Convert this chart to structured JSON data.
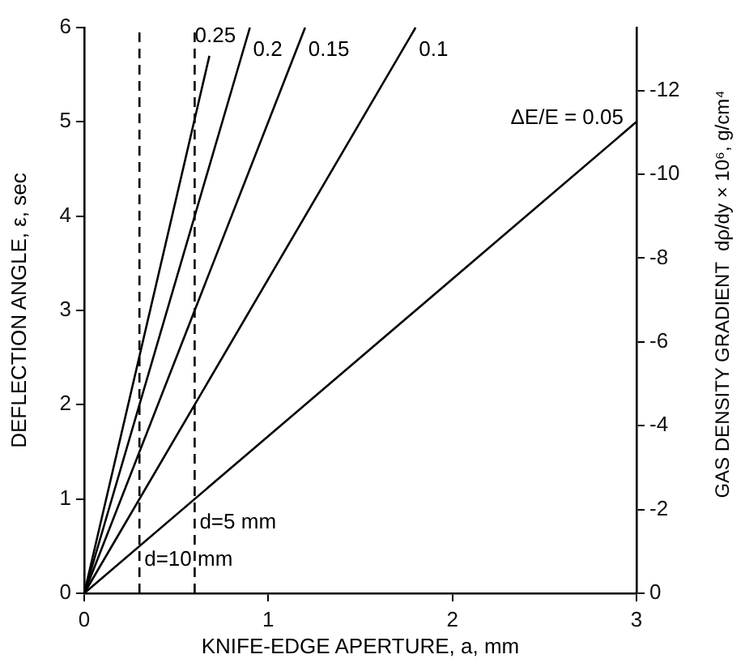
{
  "chart_data": {
    "type": "line",
    "xlabel": "KNIFE-EDGE APERTURE, a, mm",
    "ylabel": "DEFLECTION ANGLE, ε, sec",
    "y2label": "GAS DENSITY GRADIENT  dρ/dy × 10⁶, g/cm⁴",
    "xlim": [
      0,
      3
    ],
    "xticks": [
      0,
      1,
      2,
      3
    ],
    "ylim": [
      0,
      6
    ],
    "yticks": [
      0,
      1,
      2,
      3,
      4,
      5,
      6
    ],
    "y2lim": [
      0,
      -13.5
    ],
    "y2ticks": [
      0,
      -2,
      -4,
      -6,
      -8,
      -10,
      -12
    ],
    "grid": false,
    "legend": false,
    "marker": "none",
    "line_style": "solid",
    "series": [
      {
        "name": "0.25",
        "color": "#000000",
        "x": [
          0,
          0.68
        ],
        "values": [
          0,
          5.7
        ]
      },
      {
        "name": "0.2",
        "color": "#000000",
        "x": [
          0,
          0.9
        ],
        "values": [
          0,
          6
        ]
      },
      {
        "name": "0.15",
        "color": "#000000",
        "x": [
          0,
          1.2
        ],
        "values": [
          0,
          6
        ]
      },
      {
        "name": "0.1",
        "color": "#000000",
        "x": [
          0,
          1.8
        ],
        "values": [
          0,
          6
        ]
      },
      {
        "name": "ΔE/E = 0.05",
        "color": "#000000",
        "x": [
          0,
          3
        ],
        "values": [
          0,
          5
        ]
      }
    ],
    "ref_lines": [
      {
        "axis": "x",
        "value": 0.6,
        "line_style": "dashed",
        "color": "#000000"
      },
      {
        "axis": "x",
        "value": 0.3,
        "line_style": "dashed",
        "color": "#000000"
      }
    ],
    "annotations": [
      {
        "text": "d=5 mm",
        "x": 0.6,
        "y": 0.75
      },
      {
        "text": "d=10 mm",
        "x": 0.3,
        "y": 0.35
      }
    ]
  }
}
